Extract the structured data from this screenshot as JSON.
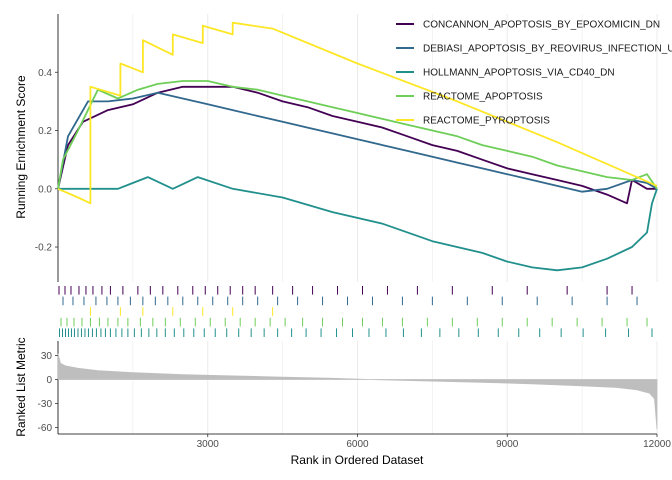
{
  "chart_data": [
    {
      "type": "line",
      "panel": "running-enrichment",
      "ylabel": "Running Enrichment Score",
      "ylim": [
        -0.32,
        0.6
      ],
      "yticks": [
        -0.2,
        0.0,
        0.2,
        0.4
      ],
      "ytick_labels": [
        "-0.2",
        "0.0",
        "0.2",
        "0.4"
      ],
      "xlim": [
        0,
        12000
      ],
      "grid": "vertical minor",
      "legend_position": "top-right",
      "series": [
        {
          "name": "CONCANNON_APOPTOSIS_BY_EPOXOMICIN_DN",
          "color": "#440154",
          "points": [
            [
              0,
              0.0
            ],
            [
              200,
              0.15
            ],
            [
              500,
              0.23
            ],
            [
              1000,
              0.27
            ],
            [
              1500,
              0.29
            ],
            [
              2000,
              0.33
            ],
            [
              2500,
              0.35
            ],
            [
              3000,
              0.35
            ],
            [
              3500,
              0.35
            ],
            [
              4000,
              0.33
            ],
            [
              4500,
              0.3
            ],
            [
              5000,
              0.28
            ],
            [
              5500,
              0.25
            ],
            [
              6000,
              0.23
            ],
            [
              6500,
              0.21
            ],
            [
              7000,
              0.18
            ],
            [
              7500,
              0.15
            ],
            [
              8000,
              0.13
            ],
            [
              8500,
              0.1
            ],
            [
              9000,
              0.07
            ],
            [
              9500,
              0.05
            ],
            [
              10000,
              0.03
            ],
            [
              10500,
              0.01
            ],
            [
              11000,
              -0.02
            ],
            [
              11400,
              -0.05
            ],
            [
              11500,
              0.03
            ],
            [
              11800,
              0.0
            ],
            [
              12000,
              0.0
            ]
          ]
        },
        {
          "name": "DEBIASI_APOPTOSIS_BY_REOVIRUS_INFECTION_UP",
          "color": "#31688e",
          "points": [
            [
              0,
              0.0
            ],
            [
              200,
              0.18
            ],
            [
              600,
              0.3
            ],
            [
              1000,
              0.3
            ],
            [
              1500,
              0.31
            ],
            [
              2000,
              0.33
            ],
            [
              2500,
              0.31
            ],
            [
              3000,
              0.29
            ],
            [
              3500,
              0.27
            ],
            [
              4000,
              0.25
            ],
            [
              4500,
              0.23
            ],
            [
              5000,
              0.21
            ],
            [
              5500,
              0.19
            ],
            [
              6000,
              0.17
            ],
            [
              6500,
              0.15
            ],
            [
              7000,
              0.13
            ],
            [
              7500,
              0.11
            ],
            [
              8000,
              0.09
            ],
            [
              8500,
              0.07
            ],
            [
              9000,
              0.05
            ],
            [
              9500,
              0.03
            ],
            [
              10000,
              0.01
            ],
            [
              10500,
              -0.01
            ],
            [
              11000,
              0.0
            ],
            [
              11500,
              0.03
            ],
            [
              11800,
              0.02
            ],
            [
              12000,
              0.0
            ]
          ]
        },
        {
          "name": "HOLLMANN_APOPTOSIS_VIA_CD40_DN",
          "color": "#21908d",
          "points": [
            [
              0,
              0.0
            ],
            [
              600,
              0.0
            ],
            [
              1200,
              0.0
            ],
            [
              1800,
              0.04
            ],
            [
              2300,
              0.0
            ],
            [
              2800,
              0.04
            ],
            [
              3500,
              0.0
            ],
            [
              4500,
              -0.03
            ],
            [
              5500,
              -0.08
            ],
            [
              6500,
              -0.12
            ],
            [
              7500,
              -0.18
            ],
            [
              8500,
              -0.22
            ],
            [
              9000,
              -0.25
            ],
            [
              9500,
              -0.27
            ],
            [
              10000,
              -0.28
            ],
            [
              10500,
              -0.27
            ],
            [
              11000,
              -0.24
            ],
            [
              11500,
              -0.2
            ],
            [
              11800,
              -0.15
            ],
            [
              11900,
              -0.05
            ],
            [
              12000,
              0.0
            ]
          ]
        },
        {
          "name": "REACTOME_APOPTOSIS",
          "color": "#6ece58",
          "points": [
            [
              0,
              0.0
            ],
            [
              100,
              0.1
            ],
            [
              400,
              0.2
            ],
            [
              800,
              0.34
            ],
            [
              1200,
              0.31
            ],
            [
              1600,
              0.34
            ],
            [
              2000,
              0.36
            ],
            [
              2500,
              0.37
            ],
            [
              3000,
              0.37
            ],
            [
              3500,
              0.35
            ],
            [
              4000,
              0.34
            ],
            [
              4500,
              0.32
            ],
            [
              5000,
              0.3
            ],
            [
              5500,
              0.28
            ],
            [
              6000,
              0.26
            ],
            [
              6500,
              0.24
            ],
            [
              7000,
              0.22
            ],
            [
              7500,
              0.2
            ],
            [
              8000,
              0.18
            ],
            [
              8500,
              0.15
            ],
            [
              9000,
              0.13
            ],
            [
              9500,
              0.11
            ],
            [
              10000,
              0.08
            ],
            [
              10500,
              0.06
            ],
            [
              11000,
              0.04
            ],
            [
              11500,
              0.03
            ],
            [
              11800,
              0.05
            ],
            [
              12000,
              0.0
            ]
          ]
        },
        {
          "name": "REACTOME_PYROPTOSIS",
          "color": "#fde725",
          "points": [
            [
              0,
              0.0
            ],
            [
              400,
              -0.03
            ],
            [
              650,
              -0.05
            ],
            [
              650,
              0.35
            ],
            [
              1250,
              0.32
            ],
            [
              1250,
              0.43
            ],
            [
              1700,
              0.4
            ],
            [
              1700,
              0.51
            ],
            [
              2300,
              0.46
            ],
            [
              2300,
              0.53
            ],
            [
              2900,
              0.5
            ],
            [
              2900,
              0.56
            ],
            [
              3500,
              0.53
            ],
            [
              3500,
              0.57
            ],
            [
              4300,
              0.55
            ],
            [
              6000,
              0.43
            ],
            [
              8000,
              0.3
            ],
            [
              10000,
              0.16
            ],
            [
              12000,
              0.01
            ]
          ]
        }
      ]
    },
    {
      "type": "table",
      "panel": "gene-hit-rug",
      "description_rows": [
        {
          "series": "CONCANNON_APOPTOSIS_BY_EPOXOMICIN_DN",
          "color": "#440154",
          "hits": [
            20,
            140,
            260,
            420,
            560,
            700,
            880,
            1050,
            1300,
            1600,
            1850,
            2100,
            2400,
            2700,
            2950,
            3200,
            3450,
            3700,
            3950,
            4300,
            4700,
            5100,
            5600,
            6100,
            6600,
            7200,
            7900,
            8700,
            9400,
            10200,
            11000,
            11500
          ]
        },
        {
          "series": "DEBIASI_APOPTOSIS_BY_REOVIRUS_INFECTION_UP",
          "color": "#31688e",
          "hits": [
            100,
            300,
            520,
            760,
            980,
            1200,
            1450,
            1700,
            1950,
            2200,
            2500,
            2800,
            3100,
            3400,
            3700,
            4000,
            4400,
            4800,
            5300,
            5800,
            6300,
            6900,
            7500,
            8200,
            8900,
            9600,
            10300,
            11000,
            11600
          ]
        },
        {
          "series": "REACTOME_PYROPTOSIS",
          "color": "#fde725",
          "hits": [
            650,
            1250,
            1700,
            2300,
            2900,
            3500,
            4300
          ]
        },
        {
          "series": "REACTOME_APOPTOSIS",
          "color": "#6ece58",
          "hits": [
            60,
            180,
            320,
            480,
            650,
            830,
            1000,
            1200,
            1400,
            1650,
            1900,
            2150,
            2450,
            2750,
            3050,
            3350,
            3650,
            3950,
            4250,
            4550,
            4900,
            5300,
            5700,
            6100,
            6500,
            6900,
            7400,
            7900,
            8400,
            8900,
            9400,
            9900,
            10400,
            10900,
            11400,
            11800
          ]
        },
        {
          "series": "HOLLMANN_APOPTOSIS_VIA_CD40_DN",
          "color": "#21908d",
          "hits": [
            30,
            90,
            150,
            210,
            270,
            330,
            400,
            470,
            540,
            610,
            690,
            770,
            860,
            950,
            1050,
            1160,
            1280,
            1400,
            1530,
            1670,
            1820,
            1980,
            2150,
            2330,
            2520,
            2720,
            2930,
            3150,
            3380,
            3620,
            3870,
            4130,
            4400,
            4680,
            4970,
            5270,
            5580,
            5900,
            6230,
            6570,
            6920,
            7280,
            7650,
            8030,
            8420,
            8820,
            9230,
            9650,
            10080,
            10520,
            10970,
            11430,
            11900
          ]
        }
      ]
    },
    {
      "type": "area",
      "panel": "ranked-list-metric",
      "xlabel": "Rank in Ordered Dataset",
      "ylabel": "Ranked List Metric",
      "color": "#bebebe",
      "ylim": [
        -68,
        48
      ],
      "yticks": [
        30,
        0,
        -30,
        -60
      ],
      "ytick_labels": [
        "30",
        "0",
        "-30",
        "-60"
      ],
      "xlim": [
        0,
        12000
      ],
      "xticks": [
        3000,
        6000,
        9000,
        12000
      ],
      "xtick_labels": [
        "3000",
        "6000",
        "9000",
        "12000"
      ],
      "metric_profile": [
        [
          0,
          32
        ],
        [
          50,
          20
        ],
        [
          150,
          17
        ],
        [
          400,
          14
        ],
        [
          800,
          11
        ],
        [
          1500,
          8.5
        ],
        [
          2500,
          6
        ],
        [
          3500,
          4.5
        ],
        [
          4500,
          3
        ],
        [
          5500,
          1.5
        ],
        [
          6000,
          0.5
        ],
        [
          6500,
          -0.5
        ],
        [
          7500,
          -2
        ],
        [
          8500,
          -3.5
        ],
        [
          9500,
          -5.5
        ],
        [
          10500,
          -8
        ],
        [
          11200,
          -10
        ],
        [
          11600,
          -13
        ],
        [
          11850,
          -17
        ],
        [
          11950,
          -24
        ],
        [
          12000,
          -62
        ]
      ]
    }
  ]
}
